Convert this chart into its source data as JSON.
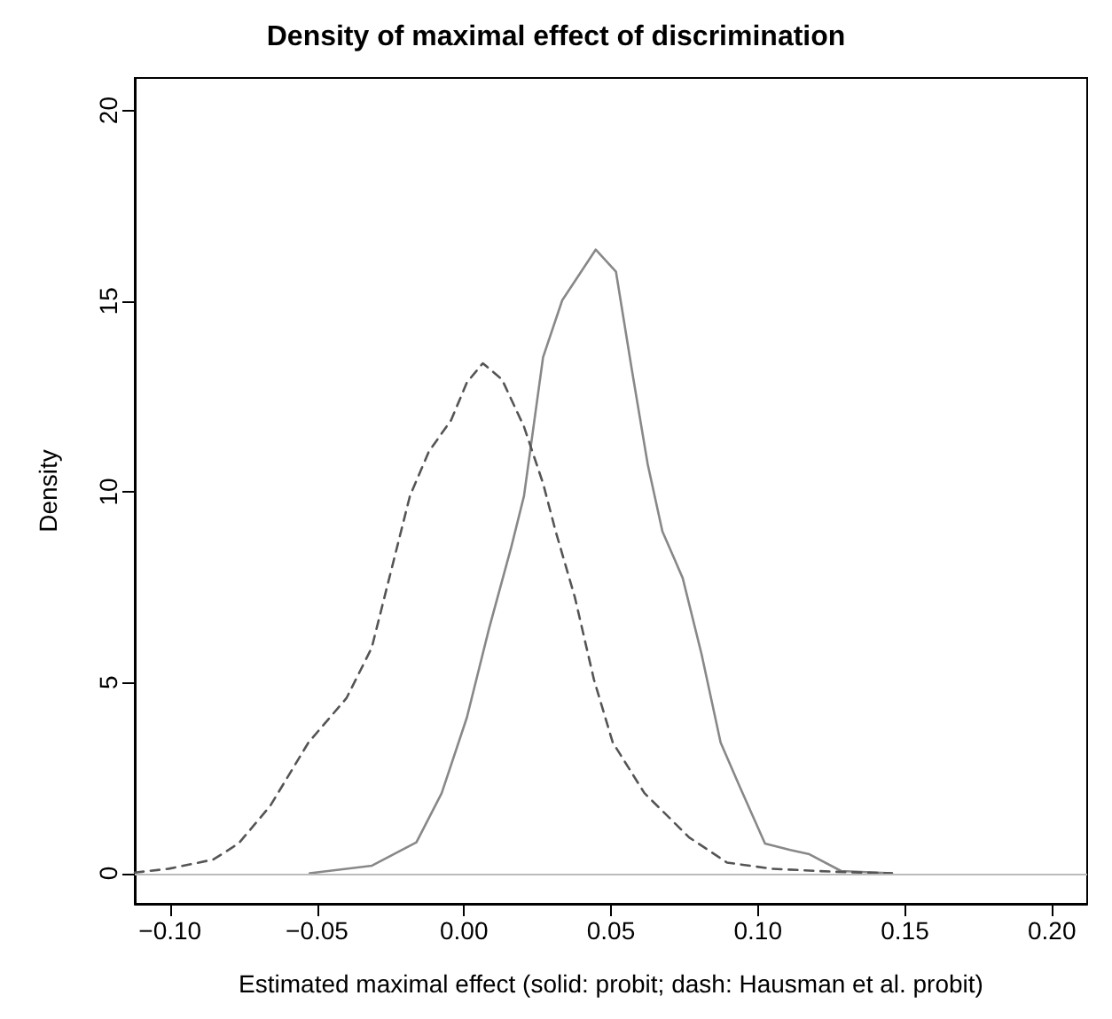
{
  "chart_data": {
    "type": "line",
    "title": "Density of maximal effect of discrimination",
    "xlabel": "Estimated maximal effect (solid: probit; dash: Hausman et al. probit)",
    "ylabel": "Density",
    "xlim": [
      -0.112,
      0.212
    ],
    "xticks": [
      {
        "value": -0.1,
        "label": "−0.10"
      },
      {
        "value": -0.05,
        "label": "−0.05"
      },
      {
        "value": 0,
        "label": "0.00"
      },
      {
        "value": 0.05,
        "label": "0.05"
      },
      {
        "value": 0.1,
        "label": "0.10"
      },
      {
        "value": 0.15,
        "label": "0.15"
      },
      {
        "value": 0.2,
        "label": "0.20"
      }
    ],
    "ylim": [
      -0.8,
      20.85
    ],
    "yticks": [
      0,
      5,
      10,
      15,
      20
    ],
    "grid": false,
    "marker": "none",
    "ref_lines": [
      {
        "axis": "y",
        "value": 0,
        "color": "#bbbbbb",
        "line_style": "solid"
      }
    ],
    "series": [
      {
        "color": "#888888",
        "line_style": "solid",
        "x": [
          -0.0525,
          -0.0313,
          -0.0162,
          -0.0076,
          0.001,
          0.0085,
          0.0161,
          0.0204,
          0.0269,
          0.0334,
          0.0448,
          0.0517,
          0.0571,
          0.0625,
          0.0675,
          0.0744,
          0.0808,
          0.0873,
          0.0938,
          0.1024,
          0.111,
          0.1175,
          0.1283,
          0.1456
        ],
        "values": [
          0,
          0.2,
          0.81,
          2.1,
          4.09,
          6.41,
          8.56,
          9.89,
          13.53,
          15.02,
          16.35,
          15.77,
          13.2,
          10.72,
          8.96,
          7.74,
          5.75,
          3.43,
          2.27,
          0.78,
          0.61,
          0.5,
          0.06,
          0
        ]
      },
      {
        "color": "#555555",
        "line_style": "dashed",
        "x": [
          -0.112,
          -0.1004,
          -0.0853,
          -0.0767,
          -0.0659,
          -0.0529,
          -0.04,
          -0.0314,
          -0.0249,
          -0.0184,
          -0.012,
          -0.0044,
          0.001,
          0.0064,
          0.0129,
          0.0204,
          0.0269,
          0.0312,
          0.0377,
          0.0442,
          0.0506,
          0.0614,
          0.0766,
          0.0895,
          0.1046,
          0.126,
          0.1456
        ],
        "values": [
          0.02,
          0.12,
          0.36,
          0.78,
          1.77,
          3.43,
          4.59,
          5.91,
          7.9,
          9.89,
          11.05,
          11.88,
          12.87,
          13.37,
          12.95,
          11.71,
          10.22,
          8.96,
          7.24,
          5.08,
          3.43,
          2.1,
          0.94,
          0.28,
          0.12,
          0.04,
          0
        ]
      }
    ]
  }
}
